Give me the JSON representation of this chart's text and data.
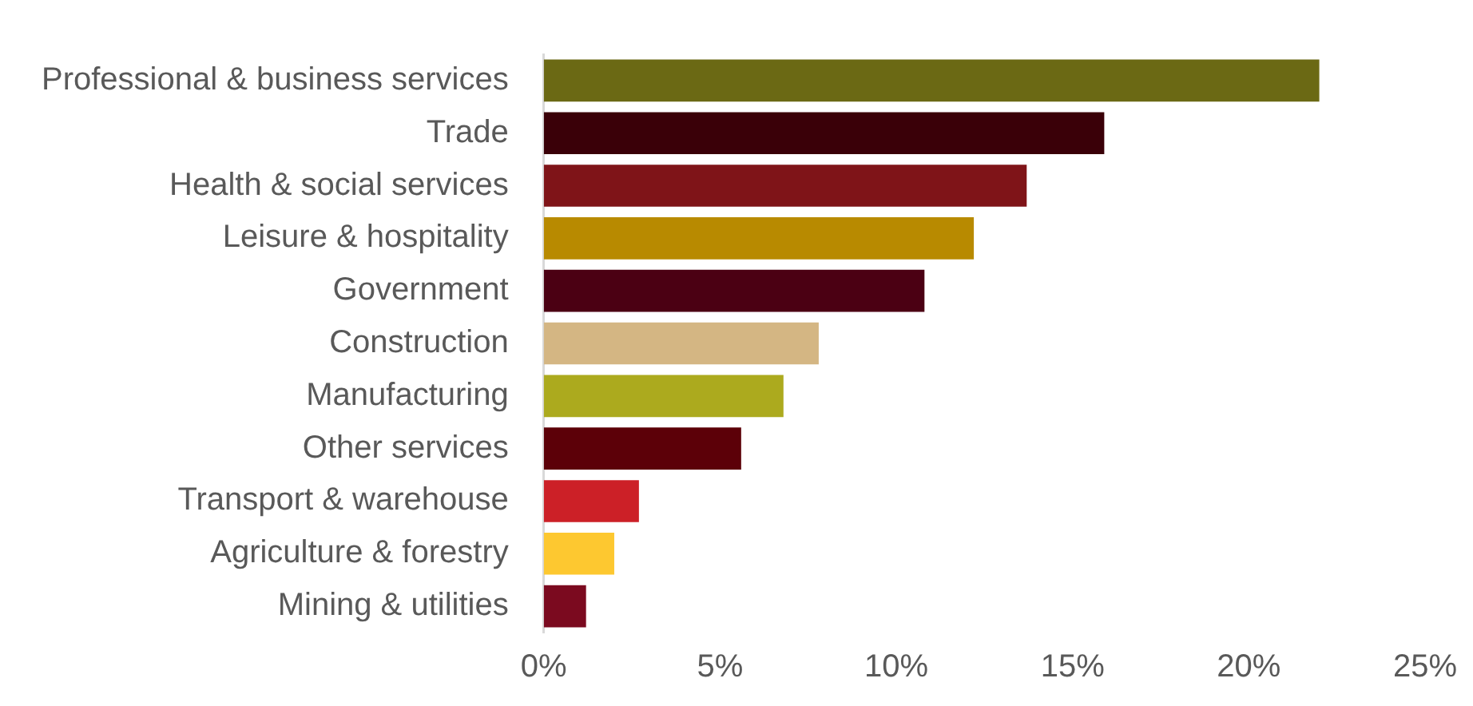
{
  "chart_data": {
    "type": "bar",
    "orientation": "horizontal",
    "categories": [
      "Professional & business services",
      "Trade",
      "Health & social services",
      "Leisure & hospitality",
      "Government",
      "Construction",
      "Manufacturing",
      "Other services",
      "Transport & warehouse",
      "Agriculture & forestry",
      "Mining & utilities"
    ],
    "values": [
      22.0,
      15.9,
      13.7,
      12.2,
      10.8,
      7.8,
      6.8,
      5.6,
      2.7,
      2.0,
      1.2
    ],
    "colors": [
      "#6b6914",
      "#3a0008",
      "#7f1418",
      "#b88a00",
      "#4b0013",
      "#d4b683",
      "#acaa1e",
      "#5c0008",
      "#cc2027",
      "#fdc830",
      "#7b0a1f"
    ],
    "xlim": [
      0,
      25
    ],
    "xticks": [
      {
        "value": 0,
        "label": "0%"
      },
      {
        "value": 5,
        "label": "5%"
      },
      {
        "value": 10,
        "label": "10%"
      },
      {
        "value": 15,
        "label": "15%"
      },
      {
        "value": 20,
        "label": "20%"
      },
      {
        "value": 25,
        "label": "25%"
      }
    ],
    "grid": false,
    "legend": false
  }
}
